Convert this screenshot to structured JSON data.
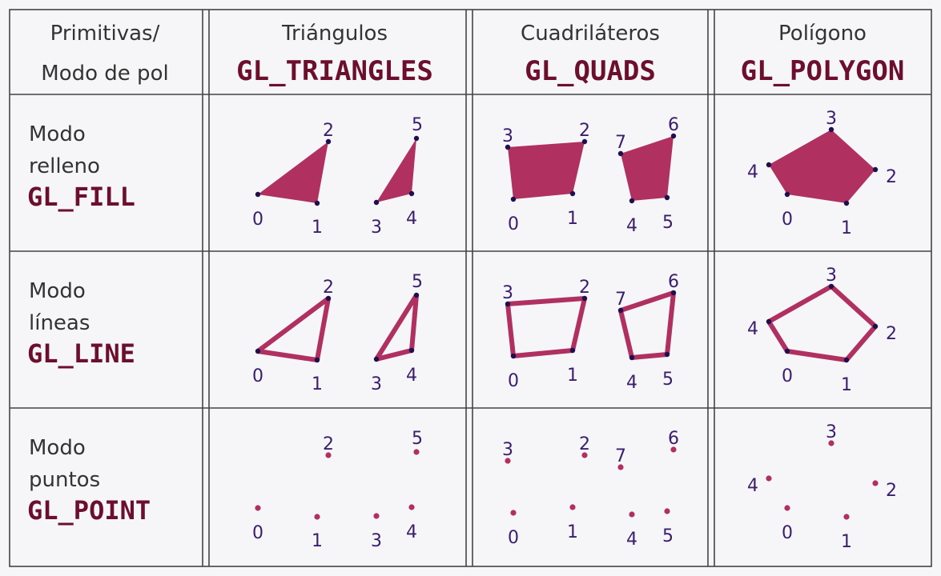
{
  "header": {
    "corner_line1": "Primitivas/",
    "corner_line2": "Modo de pol",
    "columns": [
      {
        "title": "Triángulos",
        "code": "GL_TRIANGLES"
      },
      {
        "title": "Cuadriláteros",
        "code": "GL_QUADS"
      },
      {
        "title": "Polígono",
        "code": "GL_POLYGON"
      }
    ]
  },
  "rows": [
    {
      "line1": "Modo",
      "line2": "relleno",
      "code": "GL_FILL",
      "mode": "fill"
    },
    {
      "line1": "Modo",
      "line2": "líneas",
      "code": "GL_LINE",
      "mode": "line"
    },
    {
      "line1": "Modo",
      "line2": "puntos",
      "code": "GL_POINT",
      "mode": "point"
    }
  ],
  "vertex_labels": {
    "triangles": [
      "0",
      "1",
      "2",
      "3",
      "4",
      "5"
    ],
    "quads": [
      "0",
      "1",
      "2",
      "3",
      "4",
      "5",
      "6",
      "7"
    ],
    "polygon": [
      "0",
      "1",
      "2",
      "3",
      "4"
    ]
  },
  "colors": {
    "primitive": "#b03060",
    "vertex": "#1f0f4e",
    "label": "#3b1d6e",
    "code": "#6b0f2d",
    "text": "#333333",
    "grid": "#444444",
    "background": "#f6f6f8"
  }
}
